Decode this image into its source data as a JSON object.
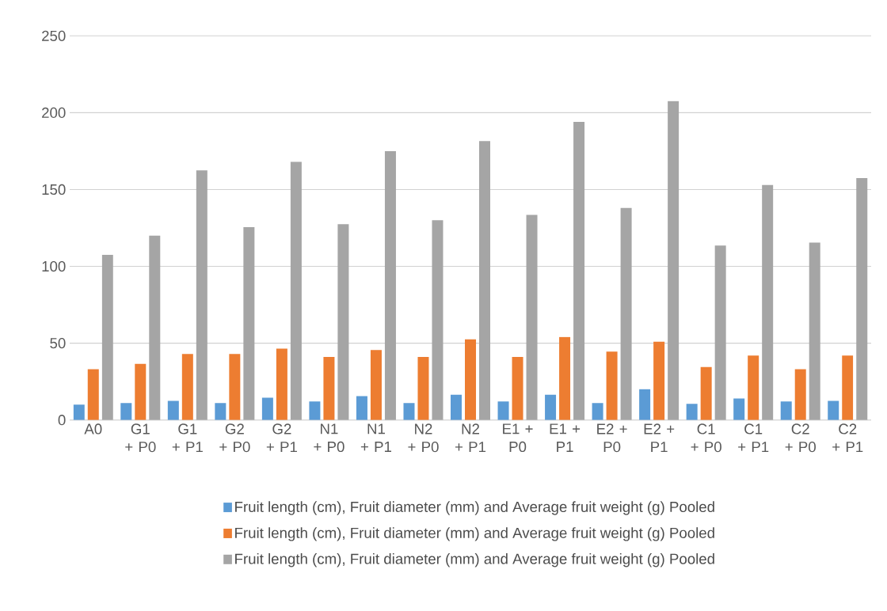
{
  "chart_data": {
    "type": "bar",
    "categories": [
      "A0",
      "G1 + P0",
      "G1 + P1",
      "G2 + P0",
      "G2 + P1",
      "N1 + P0",
      "N1 + P1",
      "N2 + P0",
      "N2 + P1",
      "E1 + P0",
      "E1 + P1",
      "E2 + P0",
      "E2 + P1",
      "C1 + P0",
      "C1 + P1",
      "C2 + P0",
      "C2 + P1"
    ],
    "series": [
      {
        "name": "Fruit length (cm), Fruit diameter (mm) and Average fruit weight (g) Pooled",
        "color": "#5b9bd5",
        "values": [
          10,
          11,
          12.5,
          11,
          14.5,
          12,
          15.5,
          11,
          16.5,
          12,
          16.5,
          11,
          20,
          10.5,
          14,
          12,
          12.5
        ]
      },
      {
        "name": "Fruit length (cm), Fruit diameter (mm) and Average fruit weight (g) Pooled",
        "color": "#ed7d31",
        "values": [
          33,
          36.5,
          43,
          43,
          46.5,
          41,
          45.5,
          41,
          52.5,
          41,
          54,
          44.5,
          51,
          34.5,
          42,
          33,
          42
        ]
      },
      {
        "name": "Fruit length (cm), Fruit diameter (mm) and Average fruit weight (g) Pooled",
        "color": "#a5a5a5",
        "values": [
          107.5,
          120,
          162.5,
          125.5,
          168,
          127.5,
          175,
          130,
          181.5,
          133.5,
          194,
          138,
          207.5,
          113.5,
          153,
          115.5,
          157.5
        ]
      }
    ],
    "ylim": [
      0,
      250
    ],
    "yticks": [
      0,
      50,
      100,
      150,
      200,
      250
    ],
    "grid": "y",
    "legend": "bottom"
  }
}
